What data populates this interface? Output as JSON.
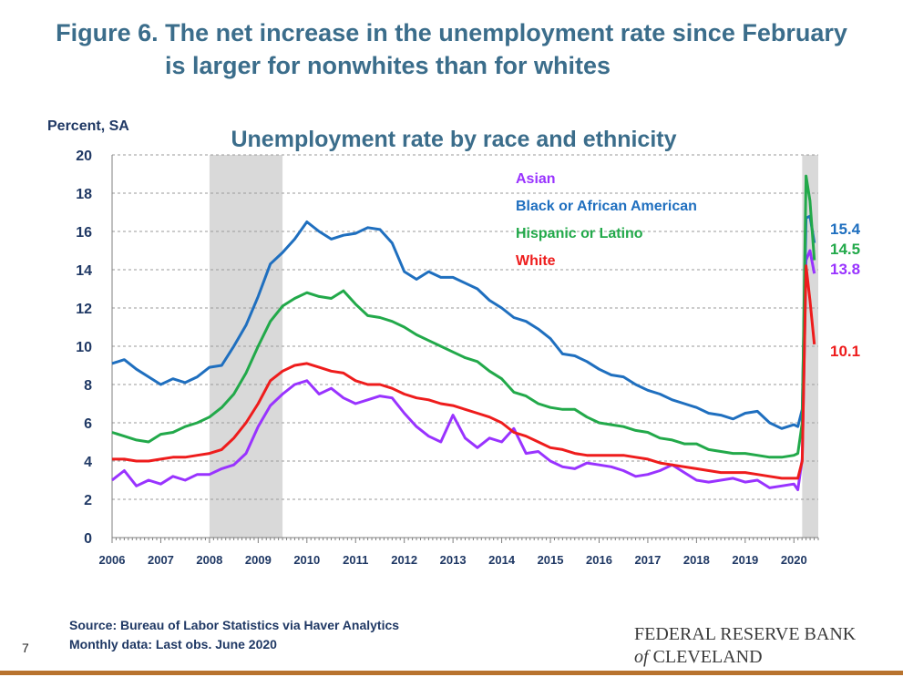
{
  "figure": {
    "title_line1": "Figure 6. The net increase in the unemployment rate since February",
    "title_line2": "is larger for nonwhites than for whites"
  },
  "footer": {
    "source": "Source: Bureau of Labor Statistics via Haver Analytics",
    "note": "Monthly data: Last obs. June 2020",
    "page_number": "7",
    "logo_line1": "FEDERAL RESERVE BANK",
    "logo_of": "of",
    "logo_line2": "CLEVELAND"
  },
  "colors": {
    "title": "#3b6d8b",
    "axis_text": "#1f3864",
    "recession_shade": "#d9d9d9",
    "footer_bar": "#b8732e"
  },
  "chart_data": {
    "type": "line",
    "title": "Unemployment rate by race and ethnicity",
    "ylabel": "Percent, SA",
    "ylim": [
      0,
      20
    ],
    "yticks": [
      0,
      2,
      4,
      6,
      8,
      10,
      12,
      14,
      16,
      18,
      20
    ],
    "xlim": [
      2006,
      2020.5
    ],
    "xticks": [
      "2006",
      "2007",
      "2008",
      "2009",
      "2010",
      "2011",
      "2012",
      "2013",
      "2014",
      "2015",
      "2016",
      "2017",
      "2018",
      "2019",
      "2020"
    ],
    "grid": true,
    "legend_position": "top-right",
    "recessions": [
      [
        2008.0,
        2009.5
      ],
      [
        2020.17,
        2020.5
      ]
    ],
    "series": [
      {
        "name": "Asian",
        "color": "#9933ff",
        "end_label": "13.8",
        "points": [
          [
            2006.0,
            3.0
          ],
          [
            2006.25,
            3.5
          ],
          [
            2006.5,
            2.7
          ],
          [
            2006.75,
            3.0
          ],
          [
            2007.0,
            2.8
          ],
          [
            2007.25,
            3.2
          ],
          [
            2007.5,
            3.0
          ],
          [
            2007.75,
            3.3
          ],
          [
            2008.0,
            3.3
          ],
          [
            2008.25,
            3.6
          ],
          [
            2008.5,
            3.8
          ],
          [
            2008.75,
            4.4
          ],
          [
            2009.0,
            5.8
          ],
          [
            2009.25,
            6.9
          ],
          [
            2009.5,
            7.5
          ],
          [
            2009.75,
            8.0
          ],
          [
            2010.0,
            8.2
          ],
          [
            2010.25,
            7.5
          ],
          [
            2010.5,
            7.8
          ],
          [
            2010.75,
            7.3
          ],
          [
            2011.0,
            7.0
          ],
          [
            2011.25,
            7.2
          ],
          [
            2011.5,
            7.4
          ],
          [
            2011.75,
            7.3
          ],
          [
            2012.0,
            6.5
          ],
          [
            2012.25,
            5.8
          ],
          [
            2012.5,
            5.3
          ],
          [
            2012.75,
            5.0
          ],
          [
            2013.0,
            6.4
          ],
          [
            2013.25,
            5.2
          ],
          [
            2013.5,
            4.7
          ],
          [
            2013.75,
            5.2
          ],
          [
            2014.0,
            5.0
          ],
          [
            2014.25,
            5.7
          ],
          [
            2014.5,
            4.4
          ],
          [
            2014.75,
            4.5
          ],
          [
            2015.0,
            4.0
          ],
          [
            2015.25,
            3.7
          ],
          [
            2015.5,
            3.6
          ],
          [
            2015.75,
            3.9
          ],
          [
            2016.0,
            3.8
          ],
          [
            2016.25,
            3.7
          ],
          [
            2016.5,
            3.5
          ],
          [
            2016.75,
            3.2
          ],
          [
            2017.0,
            3.3
          ],
          [
            2017.25,
            3.5
          ],
          [
            2017.5,
            3.8
          ],
          [
            2017.75,
            3.4
          ],
          [
            2018.0,
            3.0
          ],
          [
            2018.25,
            2.9
          ],
          [
            2018.5,
            3.0
          ],
          [
            2018.75,
            3.1
          ],
          [
            2019.0,
            2.9
          ],
          [
            2019.25,
            3.0
          ],
          [
            2019.5,
            2.6
          ],
          [
            2019.75,
            2.7
          ],
          [
            2020.0,
            2.8
          ],
          [
            2020.08,
            2.5
          ],
          [
            2020.17,
            4.1
          ],
          [
            2020.25,
            14.5
          ],
          [
            2020.33,
            15.0
          ],
          [
            2020.42,
            13.8
          ]
        ]
      },
      {
        "name": "Black or African American",
        "color": "#1f6fbf",
        "end_label": "15.4",
        "points": [
          [
            2006.0,
            9.1
          ],
          [
            2006.25,
            9.3
          ],
          [
            2006.5,
            8.8
          ],
          [
            2006.75,
            8.4
          ],
          [
            2007.0,
            8.0
          ],
          [
            2007.25,
            8.3
          ],
          [
            2007.5,
            8.1
          ],
          [
            2007.75,
            8.4
          ],
          [
            2008.0,
            8.9
          ],
          [
            2008.25,
            9.0
          ],
          [
            2008.5,
            10.0
          ],
          [
            2008.75,
            11.1
          ],
          [
            2009.0,
            12.6
          ],
          [
            2009.25,
            14.3
          ],
          [
            2009.5,
            14.9
          ],
          [
            2009.75,
            15.6
          ],
          [
            2010.0,
            16.5
          ],
          [
            2010.25,
            16.0
          ],
          [
            2010.5,
            15.6
          ],
          [
            2010.75,
            15.8
          ],
          [
            2011.0,
            15.9
          ],
          [
            2011.25,
            16.2
          ],
          [
            2011.5,
            16.1
          ],
          [
            2011.75,
            15.4
          ],
          [
            2012.0,
            13.9
          ],
          [
            2012.25,
            13.5
          ],
          [
            2012.5,
            13.9
          ],
          [
            2012.75,
            13.6
          ],
          [
            2013.0,
            13.6
          ],
          [
            2013.25,
            13.3
          ],
          [
            2013.5,
            13.0
          ],
          [
            2013.75,
            12.4
          ],
          [
            2014.0,
            12.0
          ],
          [
            2014.25,
            11.5
          ],
          [
            2014.5,
            11.3
          ],
          [
            2014.75,
            10.9
          ],
          [
            2015.0,
            10.4
          ],
          [
            2015.25,
            9.6
          ],
          [
            2015.5,
            9.5
          ],
          [
            2015.75,
            9.2
          ],
          [
            2016.0,
            8.8
          ],
          [
            2016.25,
            8.5
          ],
          [
            2016.5,
            8.4
          ],
          [
            2016.75,
            8.0
          ],
          [
            2017.0,
            7.7
          ],
          [
            2017.25,
            7.5
          ],
          [
            2017.5,
            7.2
          ],
          [
            2017.75,
            7.0
          ],
          [
            2018.0,
            6.8
          ],
          [
            2018.25,
            6.5
          ],
          [
            2018.5,
            6.4
          ],
          [
            2018.75,
            6.2
          ],
          [
            2019.0,
            6.5
          ],
          [
            2019.25,
            6.6
          ],
          [
            2019.5,
            6.0
          ],
          [
            2019.75,
            5.7
          ],
          [
            2020.0,
            5.9
          ],
          [
            2020.08,
            5.8
          ],
          [
            2020.17,
            6.7
          ],
          [
            2020.25,
            16.7
          ],
          [
            2020.33,
            16.8
          ],
          [
            2020.42,
            15.4
          ]
        ]
      },
      {
        "name": "Hispanic or Latino",
        "color": "#22a94a",
        "end_label": "14.5",
        "points": [
          [
            2006.0,
            5.5
          ],
          [
            2006.25,
            5.3
          ],
          [
            2006.5,
            5.1
          ],
          [
            2006.75,
            5.0
          ],
          [
            2007.0,
            5.4
          ],
          [
            2007.25,
            5.5
          ],
          [
            2007.5,
            5.8
          ],
          [
            2007.75,
            6.0
          ],
          [
            2008.0,
            6.3
          ],
          [
            2008.25,
            6.8
          ],
          [
            2008.5,
            7.5
          ],
          [
            2008.75,
            8.6
          ],
          [
            2009.0,
            10.0
          ],
          [
            2009.25,
            11.3
          ],
          [
            2009.5,
            12.1
          ],
          [
            2009.75,
            12.5
          ],
          [
            2010.0,
            12.8
          ],
          [
            2010.25,
            12.6
          ],
          [
            2010.5,
            12.5
          ],
          [
            2010.75,
            12.9
          ],
          [
            2011.0,
            12.2
          ],
          [
            2011.25,
            11.6
          ],
          [
            2011.5,
            11.5
          ],
          [
            2011.75,
            11.3
          ],
          [
            2012.0,
            11.0
          ],
          [
            2012.25,
            10.6
          ],
          [
            2012.5,
            10.3
          ],
          [
            2012.75,
            10.0
          ],
          [
            2013.0,
            9.7
          ],
          [
            2013.25,
            9.4
          ],
          [
            2013.5,
            9.2
          ],
          [
            2013.75,
            8.7
          ],
          [
            2014.0,
            8.3
          ],
          [
            2014.25,
            7.6
          ],
          [
            2014.5,
            7.4
          ],
          [
            2014.75,
            7.0
          ],
          [
            2015.0,
            6.8
          ],
          [
            2015.25,
            6.7
          ],
          [
            2015.5,
            6.7
          ],
          [
            2015.75,
            6.3
          ],
          [
            2016.0,
            6.0
          ],
          [
            2016.25,
            5.9
          ],
          [
            2016.5,
            5.8
          ],
          [
            2016.75,
            5.6
          ],
          [
            2017.0,
            5.5
          ],
          [
            2017.25,
            5.2
          ],
          [
            2017.5,
            5.1
          ],
          [
            2017.75,
            4.9
          ],
          [
            2018.0,
            4.9
          ],
          [
            2018.25,
            4.6
          ],
          [
            2018.5,
            4.5
          ],
          [
            2018.75,
            4.4
          ],
          [
            2019.0,
            4.4
          ],
          [
            2019.25,
            4.3
          ],
          [
            2019.5,
            4.2
          ],
          [
            2019.75,
            4.2
          ],
          [
            2020.0,
            4.3
          ],
          [
            2020.08,
            4.4
          ],
          [
            2020.17,
            6.0
          ],
          [
            2020.25,
            18.9
          ],
          [
            2020.33,
            17.6
          ],
          [
            2020.42,
            14.5
          ]
        ]
      },
      {
        "name": "White",
        "color": "#ee1c1c",
        "end_label": "10.1",
        "points": [
          [
            2006.0,
            4.1
          ],
          [
            2006.25,
            4.1
          ],
          [
            2006.5,
            4.0
          ],
          [
            2006.75,
            4.0
          ],
          [
            2007.0,
            4.1
          ],
          [
            2007.25,
            4.2
          ],
          [
            2007.5,
            4.2
          ],
          [
            2007.75,
            4.3
          ],
          [
            2008.0,
            4.4
          ],
          [
            2008.25,
            4.6
          ],
          [
            2008.5,
            5.2
          ],
          [
            2008.75,
            6.0
          ],
          [
            2009.0,
            7.0
          ],
          [
            2009.25,
            8.2
          ],
          [
            2009.5,
            8.7
          ],
          [
            2009.75,
            9.0
          ],
          [
            2010.0,
            9.1
          ],
          [
            2010.25,
            8.9
          ],
          [
            2010.5,
            8.7
          ],
          [
            2010.75,
            8.6
          ],
          [
            2011.0,
            8.2
          ],
          [
            2011.25,
            8.0
          ],
          [
            2011.5,
            8.0
          ],
          [
            2011.75,
            7.8
          ],
          [
            2012.0,
            7.5
          ],
          [
            2012.25,
            7.3
          ],
          [
            2012.5,
            7.2
          ],
          [
            2012.75,
            7.0
          ],
          [
            2013.0,
            6.9
          ],
          [
            2013.25,
            6.7
          ],
          [
            2013.5,
            6.5
          ],
          [
            2013.75,
            6.3
          ],
          [
            2014.0,
            6.0
          ],
          [
            2014.25,
            5.5
          ],
          [
            2014.5,
            5.3
          ],
          [
            2014.75,
            5.0
          ],
          [
            2015.0,
            4.7
          ],
          [
            2015.25,
            4.6
          ],
          [
            2015.5,
            4.4
          ],
          [
            2015.75,
            4.3
          ],
          [
            2016.0,
            4.3
          ],
          [
            2016.25,
            4.3
          ],
          [
            2016.5,
            4.3
          ],
          [
            2016.75,
            4.2
          ],
          [
            2017.0,
            4.1
          ],
          [
            2017.25,
            3.9
          ],
          [
            2017.5,
            3.8
          ],
          [
            2017.75,
            3.7
          ],
          [
            2018.0,
            3.6
          ],
          [
            2018.25,
            3.5
          ],
          [
            2018.5,
            3.4
          ],
          [
            2018.75,
            3.4
          ],
          [
            2019.0,
            3.4
          ],
          [
            2019.25,
            3.3
          ],
          [
            2019.5,
            3.2
          ],
          [
            2019.75,
            3.1
          ],
          [
            2020.0,
            3.1
          ],
          [
            2020.08,
            3.1
          ],
          [
            2020.17,
            4.0
          ],
          [
            2020.25,
            14.2
          ],
          [
            2020.33,
            12.4
          ],
          [
            2020.42,
            10.1
          ]
        ]
      }
    ]
  }
}
